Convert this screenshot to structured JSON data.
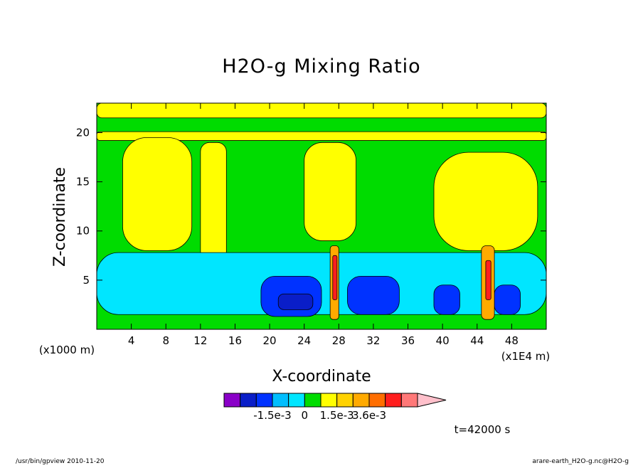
{
  "chart_data": {
    "type": "heatmap",
    "title": "H2O-g Mixing Ratio",
    "xlabel": "X-coordinate",
    "ylabel": "Z-coordinate",
    "x_unit_label": "(x1000 m)",
    "x_scale_label": "(x1E4 m)",
    "xlim": [
      0,
      52
    ],
    "ylim": [
      0,
      23
    ],
    "x_ticks": [
      "4",
      "8",
      "12",
      "16",
      "20",
      "24",
      "28",
      "32",
      "36",
      "40",
      "44",
      "48"
    ],
    "x_tick_values": [
      4,
      8,
      12,
      16,
      20,
      24,
      28,
      32,
      36,
      40,
      44,
      48
    ],
    "y_ticks": [
      "5",
      "10",
      "15",
      "20"
    ],
    "y_tick_values": [
      5,
      10,
      15,
      20
    ],
    "colorbar": {
      "labels": [
        "-1.5e-3",
        "0",
        "1.5e-3",
        "3.6e-3"
      ],
      "label_bin_index": [
        3,
        5,
        7,
        9
      ],
      "colors": [
        "#8a00c8",
        "#0a1ec8",
        "#0032ff",
        "#00beff",
        "#00e6ff",
        "#00dc00",
        "#ffff00",
        "#ffd200",
        "#ffaa00",
        "#ff6e00",
        "#ff1e1e",
        "#ff7878"
      ],
      "overflow_color": "#ffc0cb"
    },
    "regions": [
      {
        "level": "yellow",
        "color": "#ffff00",
        "x": [
          0,
          52
        ],
        "z": [
          21.5,
          23
        ]
      },
      {
        "level": "yellow",
        "color": "#ffff00",
        "x": [
          0,
          52
        ],
        "z": [
          19.2,
          20.1
        ]
      },
      {
        "level": "yellow",
        "color": "#ffff00",
        "x": [
          3,
          11
        ],
        "z": [
          8,
          19.5
        ]
      },
      {
        "level": "yellow",
        "color": "#ffff00",
        "x": [
          12,
          15
        ],
        "z": [
          7,
          19
        ]
      },
      {
        "level": "yellow",
        "color": "#ffff00",
        "x": [
          24,
          30
        ],
        "z": [
          9,
          19
        ]
      },
      {
        "level": "yellow",
        "color": "#ffff00",
        "x": [
          39,
          51
        ],
        "z": [
          8,
          18
        ]
      },
      {
        "level": "cyan",
        "color": "#00e6ff",
        "x": [
          0,
          52
        ],
        "z": [
          1.5,
          7.8
        ]
      },
      {
        "level": "blue",
        "color": "#0032ff",
        "x": [
          19,
          26
        ],
        "z": [
          1.3,
          5.4
        ]
      },
      {
        "level": "blue",
        "color": "#0032ff",
        "x": [
          29,
          35
        ],
        "z": [
          1.5,
          5.4
        ]
      },
      {
        "level": "blue",
        "color": "#0032ff",
        "x": [
          39,
          42
        ],
        "z": [
          1.5,
          4.5
        ]
      },
      {
        "level": "blue",
        "color": "#0032ff",
        "x": [
          46,
          49
        ],
        "z": [
          1.5,
          4.5
        ]
      },
      {
        "level": "dark-blue",
        "color": "#0a1ec8",
        "x": [
          21,
          25
        ],
        "z": [
          2,
          3.6
        ]
      },
      {
        "level": "orange",
        "color": "#ffaa00",
        "x": [
          27,
          28
        ],
        "z": [
          1,
          8.5
        ]
      },
      {
        "level": "orange",
        "color": "#ffaa00",
        "x": [
          44.5,
          46
        ],
        "z": [
          1,
          8.5
        ]
      },
      {
        "level": "red",
        "color": "#ff1e1e",
        "x": [
          27.3,
          27.8
        ],
        "z": [
          3,
          7.5
        ]
      },
      {
        "level": "red",
        "color": "#ff1e1e",
        "x": [
          45,
          45.6
        ],
        "z": [
          3,
          7
        ]
      }
    ]
  },
  "annotations": {
    "time": "t=42000 s",
    "footer_left": "/usr/bin/gpview   2010-11-20",
    "footer_right": "arare-earth_H2O-g.nc@H2O-g"
  }
}
